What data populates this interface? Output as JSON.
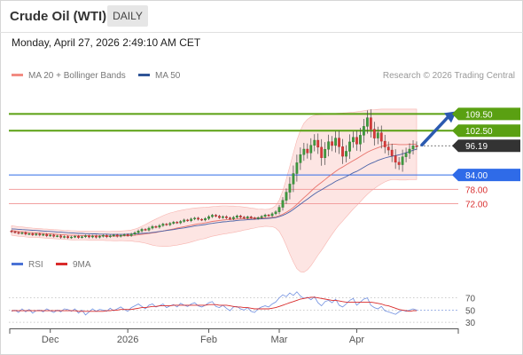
{
  "header": {
    "title": "Crude Oil (WTI)",
    "timeframe": "DAILY"
  },
  "datetime": "Monday, April 27, 2026 2:49:10 AM CET",
  "legend": {
    "items": [
      {
        "label": "MA 20 + Bollinger Bands",
        "color": "#f28b82"
      },
      {
        "label": "MA 50",
        "color": "#2f5597"
      }
    ],
    "copyright": "Research © 2026 Trading Central"
  },
  "rsi_legend": {
    "items": [
      {
        "label": "RSI",
        "color": "#4a72d6"
      },
      {
        "label": "9MA",
        "color": "#d92b2b"
      }
    ]
  },
  "chart_data": [
    {
      "type": "line",
      "series_kind": "candlestick",
      "title": "Crude Oil (WTI)",
      "ylim": [
        57,
        120
      ],
      "x_ticks": [
        {
          "label": "Dec",
          "index": 11
        },
        {
          "label": "2026",
          "index": 33
        },
        {
          "label": "Feb",
          "index": 56
        },
        {
          "label": "Mar",
          "index": 76
        },
        {
          "label": "Apr",
          "index": 98
        }
      ],
      "levels": [
        {
          "label": "109.50",
          "value": 109.5,
          "kind": "resistance",
          "color": "#5aa012"
        },
        {
          "label": "102.50",
          "value": 102.5,
          "kind": "resistance",
          "color": "#5aa012"
        },
        {
          "label": "96.19",
          "value": 96.19,
          "kind": "last",
          "color": "#333333"
        },
        {
          "label": "84.00",
          "value": 84.0,
          "kind": "pivot",
          "color": "#2f6be8"
        },
        {
          "label": "78.00",
          "value": 78.0,
          "kind": "support",
          "color": "#d93030"
        },
        {
          "label": "72.00",
          "value": 72.0,
          "kind": "support",
          "color": "#d93030"
        }
      ],
      "close": [
        60.3,
        60.0,
        59.6,
        59.9,
        59.3,
        59.5,
        59.0,
        59.4,
        58.9,
        59.2,
        58.6,
        58.9,
        58.4,
        58.6,
        58.0,
        58.3,
        57.8,
        58.1,
        58.4,
        57.9,
        58.2,
        58.6,
        58.1,
        58.5,
        58.0,
        58.4,
        58.8,
        58.2,
        58.6,
        58.9,
        58.4,
        58.8,
        59.1,
        58.7,
        59.3,
        59.9,
        60.6,
        61.3,
        61.0,
        61.8,
        62.5,
        62.2,
        62.9,
        63.5,
        63.2,
        63.8,
        64.3,
        64.0,
        64.6,
        65.2,
        64.9,
        65.6,
        66.0,
        65.5,
        65.2,
        65.8,
        66.6,
        67.2,
        66.8,
        66.2,
        66.6,
        66.1,
        65.7,
        66.3,
        66.9,
        66.4,
        66.0,
        66.5,
        66.1,
        65.8,
        66.2,
        66.7,
        67.3,
        67.0,
        67.8,
        68.6,
        70.5,
        73.4,
        76.8,
        80.2,
        84.6,
        89.1,
        92.5,
        94.8,
        93.2,
        96.4,
        98.5,
        95.6,
        91.2,
        94.7,
        97.9,
        96.3,
        99.4,
        95.8,
        91.8,
        93.9,
        97.8,
        99.7,
        96.9,
        100.6,
        104.3,
        107.9,
        103.1,
        99.4,
        101.6,
        98.1,
        95.7,
        94.4,
        92.0,
        89.3,
        88.3,
        91.6,
        93.1,
        94.8,
        96.2,
        96.19
      ],
      "ma20": [
        60.8,
        60.6,
        60.4,
        60.3,
        60.1,
        60.0,
        59.9,
        59.8,
        59.7,
        59.6,
        59.5,
        59.4,
        59.3,
        59.2,
        59.1,
        59.0,
        58.9,
        58.8,
        58.8,
        58.7,
        58.7,
        58.7,
        58.6,
        58.6,
        58.6,
        58.6,
        58.6,
        58.5,
        58.5,
        58.5,
        58.5,
        58.6,
        58.6,
        58.6,
        58.7,
        58.8,
        59.0,
        59.2,
        59.4,
        59.6,
        59.8,
        60.0,
        60.3,
        60.6,
        60.9,
        61.2,
        61.5,
        61.8,
        62.1,
        62.4,
        62.7,
        63.0,
        63.3,
        63.6,
        63.8,
        64.0,
        64.3,
        64.6,
        64.8,
        65.0,
        65.2,
        65.3,
        65.4,
        65.5,
        65.6,
        65.7,
        65.8,
        65.8,
        65.9,
        65.9,
        66.0,
        66.0,
        66.1,
        66.1,
        66.3,
        66.5,
        67.0,
        67.6,
        68.4,
        69.3,
        70.4,
        71.7,
        73.1,
        74.5,
        75.8,
        77.2,
        78.6,
        79.8,
        80.9,
        82.1,
        83.3,
        84.4,
        85.5,
        86.5,
        87.3,
        88.2,
        89.1,
        90.0,
        90.8,
        91.7,
        92.6,
        93.5,
        94.2,
        94.8,
        95.4,
        95.9,
        96.3,
        96.6,
        96.8,
        96.8,
        96.7,
        96.7,
        96.7,
        96.8,
        96.8,
        96.8
      ],
      "bb_upper": [
        62.8,
        62.6,
        62.4,
        62.3,
        62.1,
        62.0,
        61.8,
        61.7,
        61.6,
        61.5,
        61.4,
        61.3,
        61.2,
        61.1,
        61.0,
        60.9,
        60.8,
        60.7,
        60.7,
        60.6,
        60.6,
        60.6,
        60.5,
        60.5,
        60.5,
        60.5,
        60.5,
        60.4,
        60.4,
        60.5,
        60.5,
        60.6,
        60.7,
        60.8,
        61.0,
        61.4,
        61.9,
        62.6,
        63.3,
        64.1,
        64.9,
        65.6,
        66.3,
        67.0,
        67.6,
        68.1,
        68.5,
        68.9,
        69.2,
        69.5,
        69.8,
        70.0,
        70.2,
        70.3,
        70.4,
        70.5,
        70.6,
        70.8,
        70.9,
        71.0,
        71.1,
        71.1,
        71.0,
        71.0,
        70.9,
        70.8,
        70.6,
        70.4,
        70.2,
        70.0,
        69.8,
        69.7,
        69.6,
        69.7,
        70.2,
        71.2,
        73.5,
        77.4,
        82.3,
        87.6,
        93.1,
        98.5,
        102.6,
        105.6,
        107.2,
        108.3,
        108.9,
        109.1,
        109.3,
        109.4,
        109.5,
        109.6,
        109.7,
        109.8,
        109.9,
        110.0,
        110.1,
        110.2,
        110.4,
        110.6,
        110.8,
        111.1,
        111.2,
        111.3,
        111.4,
        111.5,
        111.5,
        111.5,
        111.5,
        111.5,
        111.5,
        111.5,
        111.5,
        111.5,
        111.5,
        111.5
      ],
      "bb_lower": [
        58.8,
        58.6,
        58.4,
        58.3,
        58.1,
        58.0,
        58.0,
        57.9,
        57.8,
        57.7,
        57.6,
        57.5,
        57.4,
        57.3,
        57.2,
        57.1,
        57.0,
        56.9,
        56.9,
        56.8,
        56.8,
        56.8,
        56.7,
        56.7,
        56.7,
        56.7,
        56.7,
        56.6,
        56.6,
        56.5,
        56.5,
        56.6,
        56.5,
        56.4,
        56.4,
        56.2,
        56.1,
        55.8,
        55.5,
        55.1,
        54.7,
        54.4,
        54.3,
        54.2,
        54.2,
        54.3,
        54.5,
        54.7,
        55.0,
        55.3,
        55.6,
        56.0,
        56.4,
        56.9,
        57.2,
        57.5,
        58.0,
        58.4,
        58.7,
        59.0,
        59.3,
        59.5,
        59.8,
        60.0,
        60.3,
        60.6,
        61.0,
        61.2,
        61.6,
        61.8,
        62.2,
        62.3,
        62.6,
        62.5,
        62.4,
        61.8,
        60.5,
        57.8,
        54.5,
        51.0,
        47.7,
        44.9,
        43.6,
        43.4,
        44.4,
        46.1,
        48.3,
        50.5,
        52.5,
        54.8,
        57.1,
        59.2,
        61.3,
        63.2,
        64.7,
        66.4,
        68.1,
        69.8,
        71.2,
        72.8,
        74.4,
        75.9,
        77.2,
        78.3,
        79.4,
        80.3,
        81.1,
        81.7,
        82.1,
        82.1,
        81.9,
        81.9,
        81.9,
        82.1,
        82.1,
        82.1
      ],
      "ma50": [
        61.5,
        61.4,
        61.3,
        61.2,
        61.1,
        61.0,
        60.9,
        60.8,
        60.7,
        60.6,
        60.5,
        60.4,
        60.3,
        60.2,
        60.1,
        60.0,
        59.9,
        59.8,
        59.7,
        59.6,
        59.6,
        59.5,
        59.5,
        59.4,
        59.4,
        59.3,
        59.3,
        59.3,
        59.2,
        59.2,
        59.2,
        59.2,
        59.2,
        59.3,
        59.3,
        59.4,
        59.5,
        59.6,
        59.7,
        59.8,
        60.0,
        60.2,
        60.4,
        60.6,
        60.8,
        61.0,
        61.2,
        61.5,
        61.7,
        61.9,
        62.2,
        62.4,
        62.7,
        62.9,
        63.1,
        63.3,
        63.6,
        63.8,
        64.0,
        64.2,
        64.4,
        64.5,
        64.7,
        64.8,
        65.0,
        65.1,
        65.2,
        65.3,
        65.4,
        65.5,
        65.6,
        65.7,
        65.8,
        65.9,
        66.0,
        66.2,
        66.6,
        67.1,
        67.8,
        68.6,
        69.6,
        70.7,
        71.8,
        72.9,
        73.9,
        75.0,
        76.1,
        77.0,
        77.8,
        78.7,
        79.6,
        80.4,
        81.3,
        82.0,
        82.6,
        83.3,
        84.1,
        84.9,
        85.5,
        86.3,
        87.2,
        88.1,
        88.8,
        89.4,
        90.1,
        90.6,
        91.1,
        91.5,
        91.8,
        92.1,
        92.4,
        92.8,
        93.3,
        93.8,
        94.3,
        94.8
      ]
    },
    {
      "type": "line",
      "title": "RSI",
      "ylim": [
        20,
        100
      ],
      "y_ticks": [
        70,
        50,
        30
      ],
      "series": [
        {
          "name": "RSI",
          "values": [
            48,
            50,
            46,
            52,
            47,
            51,
            45,
            49,
            50,
            47,
            52,
            49,
            46,
            50,
            47,
            52,
            51,
            48,
            52,
            45,
            50,
            42,
            47,
            52,
            48,
            51,
            50,
            48,
            53,
            49,
            52,
            55,
            51,
            48,
            54,
            57,
            60,
            56,
            52,
            58,
            60,
            55,
            57,
            60,
            54,
            57,
            59,
            55,
            61,
            58,
            56,
            60,
            62,
            57,
            55,
            58,
            62,
            64,
            56,
            54,
            58,
            53,
            49,
            55,
            56,
            52,
            50,
            54,
            48,
            46,
            52,
            55,
            57,
            55,
            60,
            63,
            70,
            75,
            72,
            78,
            74,
            80,
            73,
            69,
            71,
            67,
            72,
            62,
            57,
            64,
            66,
            62,
            68,
            58,
            55,
            60,
            66,
            69,
            58,
            63,
            68,
            70,
            58,
            54,
            52,
            56,
            49,
            47,
            45,
            43,
            47,
            50,
            48,
            50,
            52,
            50
          ]
        },
        {
          "name": "9MA",
          "values": [
            49,
            49,
            49,
            49,
            49,
            49,
            49,
            49,
            49,
            49,
            49,
            49,
            49,
            49,
            49,
            49,
            49,
            49,
            49,
            48,
            48,
            48,
            48,
            48,
            48,
            48,
            48,
            49,
            49,
            50,
            50,
            51,
            51,
            51,
            51,
            52,
            53,
            54,
            54,
            55,
            56,
            56,
            57,
            57,
            57,
            57,
            58,
            58,
            58,
            58,
            58,
            58,
            58,
            58,
            58,
            58,
            59,
            59,
            59,
            58,
            58,
            58,
            57,
            56,
            55,
            55,
            54,
            54,
            53,
            52,
            52,
            52,
            52,
            52,
            53,
            54,
            56,
            58,
            60,
            62,
            64,
            66,
            68,
            69,
            70,
            71,
            71,
            70,
            69,
            68,
            67,
            66,
            66,
            65,
            64,
            63,
            63,
            63,
            63,
            63,
            63,
            63,
            63,
            62,
            61,
            60,
            58,
            57,
            55,
            53,
            51,
            50,
            49,
            48,
            49,
            49
          ]
        }
      ]
    }
  ]
}
